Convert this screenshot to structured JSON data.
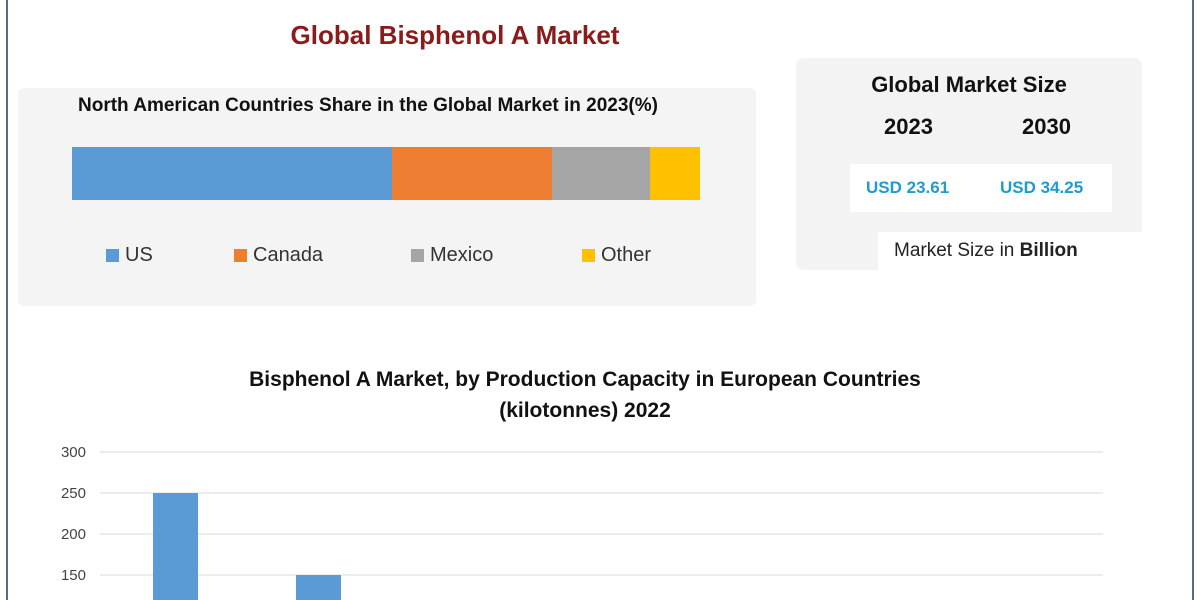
{
  "main_title": "Global Bisphenol A Market",
  "share_panel": {
    "title": "North American Countries Share in the Global Market in 2023(%)"
  },
  "market_size": {
    "title": "Global Market Size",
    "year_a": "2023",
    "year_b": "2030",
    "value_a": "USD 23.61",
    "value_b": "USD 34.25",
    "note_prefix": "Market Size in",
    "note_bold": "Billion"
  },
  "colors": {
    "us": "#5b9bd5",
    "canada": "#ed7d31",
    "mexico": "#a5a5a5",
    "other": "#ffc000",
    "title_red": "#8b1a1a",
    "value_blue": "#1f9bd1"
  },
  "chart_data": [
    {
      "type": "bar",
      "orientation": "horizontal-stacked",
      "title": "North American Countries Share in the Global Market in 2023(%)",
      "series": [
        {
          "name": "US",
          "values": [
            51
          ]
        },
        {
          "name": "Canada",
          "values": [
            25.5
          ]
        },
        {
          "name": "Mexico",
          "values": [
            15.5
          ]
        },
        {
          "name": "Other",
          "values": [
            8
          ]
        }
      ],
      "legend": "bottom",
      "grid": false
    },
    {
      "type": "bar",
      "title": "Bisphenol A Market, by Production Capacity in European Countries (kilotonnes) 2022",
      "values": [
        250,
        150
      ],
      "ylim": [
        150,
        300
      ],
      "yticks": [
        "300",
        "250",
        "200",
        "150"
      ],
      "grid": true
    }
  ]
}
